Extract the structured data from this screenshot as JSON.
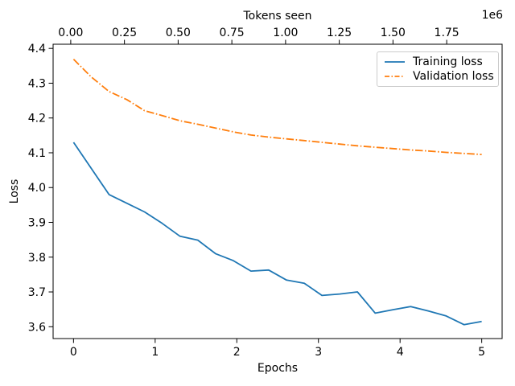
{
  "chart_data": {
    "type": "line",
    "xlabel": "Epochs",
    "ylabel": "Loss",
    "grid": false,
    "legend_position": "upper right",
    "top_axis": {
      "label": "Tokens seen",
      "offset_label": "1e6",
      "tick_labels": [
        "0.00",
        "0.25",
        "0.50",
        "0.75",
        "1.00",
        "1.25",
        "1.50",
        "1.75"
      ],
      "tick_values": [
        0,
        250000,
        500000,
        750000,
        1000000,
        1250000,
        1500000,
        1750000
      ],
      "xlim": [
        -82000,
        2008000
      ]
    },
    "xlim": [
      -0.25,
      5.25
    ],
    "ylim": [
      3.566,
      4.412
    ],
    "x_ticks_bottom": [
      0,
      1,
      2,
      3,
      4,
      5
    ],
    "y_ticks": [
      3.6,
      3.7,
      3.8,
      3.9,
      4.0,
      4.1,
      4.2,
      4.3,
      4.4
    ],
    "x_epochs": [
      0.0,
      0.217,
      0.435,
      0.652,
      0.87,
      1.087,
      1.304,
      1.522,
      1.739,
      1.957,
      2.174,
      2.391,
      2.609,
      2.826,
      3.043,
      3.261,
      3.478,
      3.696,
      3.913,
      4.13,
      4.348,
      4.565,
      4.783,
      5.0
    ],
    "series": [
      {
        "name": "Training loss",
        "color": "#1f77b4",
        "style": "solid",
        "values": [
          4.13,
          4.055,
          3.98,
          3.955,
          3.93,
          3.897,
          3.86,
          3.849,
          3.81,
          3.79,
          3.76,
          3.763,
          3.734,
          3.725,
          3.69,
          3.694,
          3.7,
          3.639,
          3.649,
          3.658,
          3.645,
          3.631,
          3.606,
          3.615
        ]
      },
      {
        "name": "Validation loss",
        "color": "#ff7f0e",
        "style": "dashdot",
        "values": [
          4.369,
          4.318,
          4.276,
          4.253,
          4.221,
          4.207,
          4.192,
          4.182,
          4.171,
          4.16,
          4.151,
          4.145,
          4.14,
          4.135,
          4.13,
          4.125,
          4.12,
          4.116,
          4.112,
          4.108,
          4.105,
          4.101,
          4.098,
          4.095
        ]
      }
    ]
  }
}
